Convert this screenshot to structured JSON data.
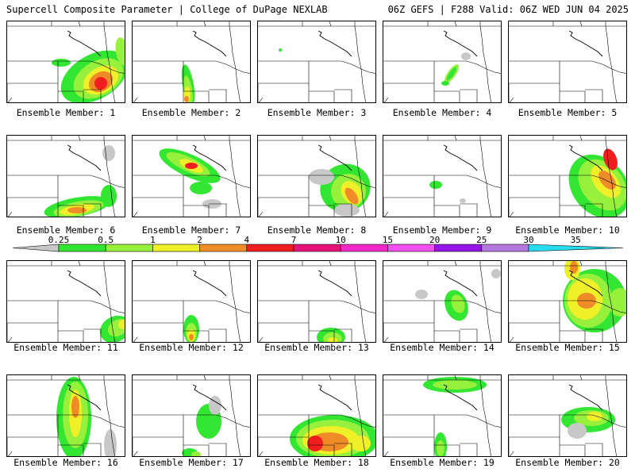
{
  "header": {
    "title": "Supercell Composite Parameter | College of DuPage NEXLAB",
    "run_info": "06Z GEFS | F288 Valid: 06Z WED JUN 04 2025"
  },
  "legend": {
    "ticks": [
      "0.25",
      "0.5",
      "1",
      "2",
      "4",
      "7",
      "10",
      "15",
      "20",
      "25",
      "30",
      "35"
    ],
    "colors": [
      "#c8c8c8",
      "#32e632",
      "#96f03c",
      "#f0f028",
      "#f08c28",
      "#f01e1e",
      "#e61478",
      "#f028c8",
      "#f050f0",
      "#9614e6",
      "#b478dc",
      "#28dcf0"
    ]
  },
  "members": [
    {
      "label": "Ensemble Member: 1"
    },
    {
      "label": "Ensemble Member: 2"
    },
    {
      "label": "Ensemble Member: 3"
    },
    {
      "label": "Ensemble Member: 4"
    },
    {
      "label": "Ensemble Member: 5"
    },
    {
      "label": "Ensemble Member: 6"
    },
    {
      "label": "Ensemble Member: 7"
    },
    {
      "label": "Ensemble Member: 8"
    },
    {
      "label": "Ensemble Member: 9"
    },
    {
      "label": "Ensemble Member: 10"
    },
    {
      "label": "Ensemble Member: 11"
    },
    {
      "label": "Ensemble Member: 12"
    },
    {
      "label": "Ensemble Member: 13"
    },
    {
      "label": "Ensemble Member: 14"
    },
    {
      "label": "Ensemble Member: 15"
    },
    {
      "label": "Ensemble Member: 16"
    },
    {
      "label": "Ensemble Member: 17"
    },
    {
      "label": "Ensemble Member: 18"
    },
    {
      "label": "Ensemble Member: 19"
    },
    {
      "label": "Ensemble Member: 20"
    }
  ]
}
